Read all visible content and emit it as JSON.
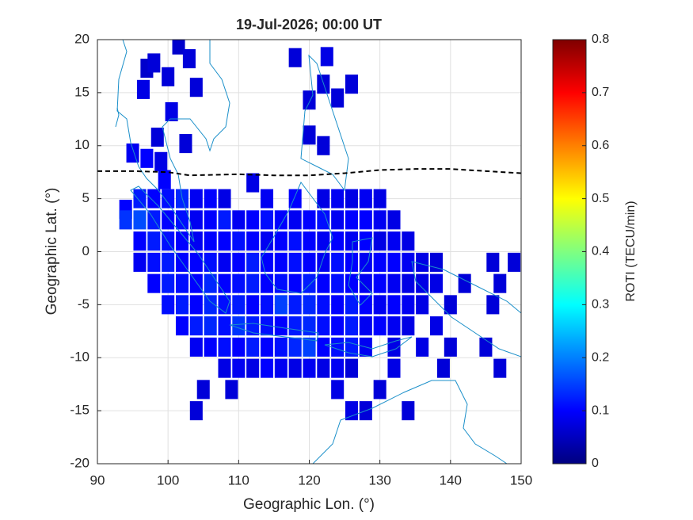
{
  "chart_data": {
    "type": "tilemap",
    "title": "19-Jul-2026; 00:00 UT",
    "x_label": "Geographic Lon. (°)",
    "y_label": "Geographic Lat. (°)",
    "xlim": [
      90,
      150
    ],
    "ylim": [
      -20,
      20
    ],
    "xticks": [
      90,
      100,
      110,
      120,
      130,
      140,
      150
    ],
    "yticks": [
      -20,
      -15,
      -10,
      -5,
      0,
      5,
      10,
      15,
      20
    ],
    "grid": true,
    "x": [
      101.5,
      97,
      98,
      100,
      96.5,
      104,
      103,
      118,
      122.5,
      122,
      126,
      120,
      124,
      100.5,
      98.5,
      102.5,
      120,
      122,
      95,
      97,
      99,
      112,
      94,
      99.5,
      96,
      98,
      100,
      102,
      104,
      106,
      108,
      114,
      118,
      122,
      124,
      126,
      128,
      130,
      94,
      96,
      98,
      100,
      102,
      104,
      106,
      108,
      110,
      112,
      114,
      116,
      118,
      120,
      122,
      124,
      126,
      128,
      130,
      132,
      96,
      98,
      100,
      102,
      104,
      106,
      108,
      110,
      112,
      114,
      116,
      118,
      120,
      122,
      124,
      126,
      128,
      130,
      132,
      134,
      96,
      98,
      100,
      102,
      104,
      106,
      108,
      110,
      112,
      114,
      116,
      118,
      120,
      122,
      124,
      126,
      128,
      130,
      132,
      134,
      136,
      138,
      146,
      149,
      98,
      100,
      102,
      104,
      106,
      108,
      110,
      112,
      114,
      116,
      118,
      120,
      122,
      124,
      126,
      128,
      130,
      132,
      134,
      136,
      138,
      142,
      147,
      100,
      102,
      104,
      106,
      108,
      110,
      112,
      114,
      116,
      118,
      120,
      122,
      124,
      126,
      128,
      130,
      132,
      134,
      136,
      140,
      146,
      102,
      104,
      106,
      108,
      110,
      112,
      114,
      116,
      118,
      120,
      122,
      124,
      126,
      128,
      130,
      132,
      134,
      138,
      104,
      106,
      108,
      110,
      112,
      114,
      116,
      118,
      120,
      122,
      124,
      126,
      128,
      132,
      136,
      140,
      145,
      108,
      110,
      112,
      114,
      116,
      118,
      120,
      122,
      124,
      126,
      132,
      139,
      147,
      105,
      109,
      124,
      130,
      104,
      126,
      128,
      134
    ],
    "y": [
      19.5,
      17.3,
      17.8,
      16.5,
      15.3,
      15.5,
      18.2,
      18.3,
      18.4,
      15.8,
      15.8,
      14.3,
      14.5,
      13.2,
      10.8,
      10.2,
      11,
      10,
      9.3,
      8.8,
      8.5,
      6.5,
      4,
      6.8,
      5,
      5,
      5,
      5,
      5,
      5,
      5,
      5,
      5,
      5,
      5,
      5,
      5,
      5,
      3,
      3,
      3,
      3,
      3,
      3,
      3,
      3,
      3,
      3,
      3,
      3,
      3,
      3,
      3,
      3,
      3,
      3,
      3,
      3,
      1,
      1,
      1,
      1,
      1,
      1,
      1,
      1,
      1,
      1,
      1,
      1,
      1,
      1,
      1,
      1,
      1,
      1,
      1,
      1,
      -1,
      -1,
      -1,
      -1,
      -1,
      -1,
      -1,
      -1,
      -1,
      -1,
      -1,
      -1,
      -1,
      -1,
      -1,
      -1,
      -1,
      -1,
      -1,
      -1,
      -1,
      -1,
      -1,
      -1,
      -3,
      -3,
      -3,
      -3,
      -3,
      -3,
      -3,
      -3,
      -3,
      -3,
      -3,
      -3,
      -3,
      -3,
      -3,
      -3,
      -3,
      -3,
      -3,
      -3,
      -3,
      -3,
      -3,
      -5,
      -5,
      -5,
      -5,
      -5,
      -5,
      -5,
      -5,
      -5,
      -5,
      -5,
      -5,
      -5,
      -5,
      -5,
      -5,
      -5,
      -5,
      -5,
      -5,
      -5,
      -7,
      -7,
      -7,
      -7,
      -7,
      -7,
      -7,
      -7,
      -7,
      -7,
      -7,
      -7,
      -7,
      -7,
      -7,
      -7,
      -7,
      -7,
      -9,
      -9,
      -9,
      -9,
      -9,
      -9,
      -9,
      -9,
      -9,
      -9,
      -9,
      -9,
      -9,
      -9,
      -9,
      -9,
      -9,
      -11,
      -11,
      -11,
      -11,
      -11,
      -11,
      -11,
      -11,
      -11,
      -11,
      -11,
      -11,
      -11,
      -13,
      -13,
      -13,
      -13,
      -15,
      -15,
      -15,
      -15
    ],
    "values": [
      0.06,
      0.06,
      0.07,
      0.07,
      0.08,
      0.07,
      0.07,
      0.07,
      0.08,
      0.07,
      0.07,
      0.07,
      0.07,
      0.08,
      0.07,
      0.07,
      0.07,
      0.07,
      0.09,
      0.1,
      0.08,
      0.08,
      0.1,
      0.1,
      0.12,
      0.1,
      0.11,
      0.13,
      0.09,
      0.1,
      0.08,
      0.09,
      0.1,
      0.08,
      0.09,
      0.08,
      0.09,
      0.08,
      0.14,
      0.16,
      0.12,
      0.1,
      0.11,
      0.09,
      0.1,
      0.12,
      0.09,
      0.1,
      0.11,
      0.1,
      0.09,
      0.1,
      0.11,
      0.09,
      0.1,
      0.1,
      0.09,
      0.08,
      0.1,
      0.12,
      0.11,
      0.1,
      0.09,
      0.1,
      0.1,
      0.11,
      0.1,
      0.09,
      0.1,
      0.11,
      0.1,
      0.09,
      0.1,
      0.09,
      0.1,
      0.08,
      0.09,
      0.08,
      0.09,
      0.11,
      0.12,
      0.1,
      0.1,
      0.11,
      0.09,
      0.1,
      0.12,
      0.1,
      0.1,
      0.11,
      0.1,
      0.09,
      0.11,
      0.1,
      0.09,
      0.1,
      0.1,
      0.09,
      0.08,
      0.07,
      0.07,
      0.07,
      0.1,
      0.12,
      0.11,
      0.1,
      0.13,
      0.1,
      0.11,
      0.12,
      0.1,
      0.11,
      0.1,
      0.12,
      0.1,
      0.11,
      0.1,
      0.09,
      0.1,
      0.09,
      0.08,
      0.08,
      0.08,
      0.07,
      0.07,
      0.11,
      0.12,
      0.1,
      0.13,
      0.11,
      0.12,
      0.1,
      0.11,
      0.15,
      0.12,
      0.13,
      0.11,
      0.1,
      0.12,
      0.1,
      0.09,
      0.1,
      0.09,
      0.08,
      0.07,
      0.07,
      0.1,
      0.12,
      0.13,
      0.11,
      0.14,
      0.12,
      0.11,
      0.1,
      0.12,
      0.13,
      0.11,
      0.1,
      0.12,
      0.09,
      0.1,
      0.09,
      0.08,
      0.08,
      0.09,
      0.1,
      0.11,
      0.1,
      0.12,
      0.1,
      0.11,
      0.13,
      0.15,
      0.1,
      0.11,
      0.12,
      0.09,
      0.08,
      0.08,
      0.07,
      0.07,
      0.08,
      0.09,
      0.08,
      0.1,
      0.09,
      0.08,
      0.09,
      0.08,
      0.09,
      0.07,
      0.08,
      0.07,
      0.07,
      0.07,
      0.07,
      0.08,
      0.07,
      0.07,
      0.08,
      0.07,
      0.07
    ],
    "dip_equator": {
      "x": [
        90,
        95,
        100,
        103,
        110,
        115,
        120,
        125,
        130,
        135,
        140,
        145,
        150
      ],
      "y": [
        7.6,
        7.6,
        7.5,
        7.2,
        7.3,
        7.2,
        7.2,
        7.4,
        7.7,
        7.8,
        7.8,
        7.6,
        7.4
      ]
    },
    "colorbar": {
      "label": "ROTI (TECU/min)",
      "colormap": "jet",
      "lim": [
        0,
        0.8
      ],
      "ticks": [
        0,
        0.1,
        0.2,
        0.3,
        0.4,
        0.5,
        0.6,
        0.7,
        0.8
      ]
    }
  }
}
